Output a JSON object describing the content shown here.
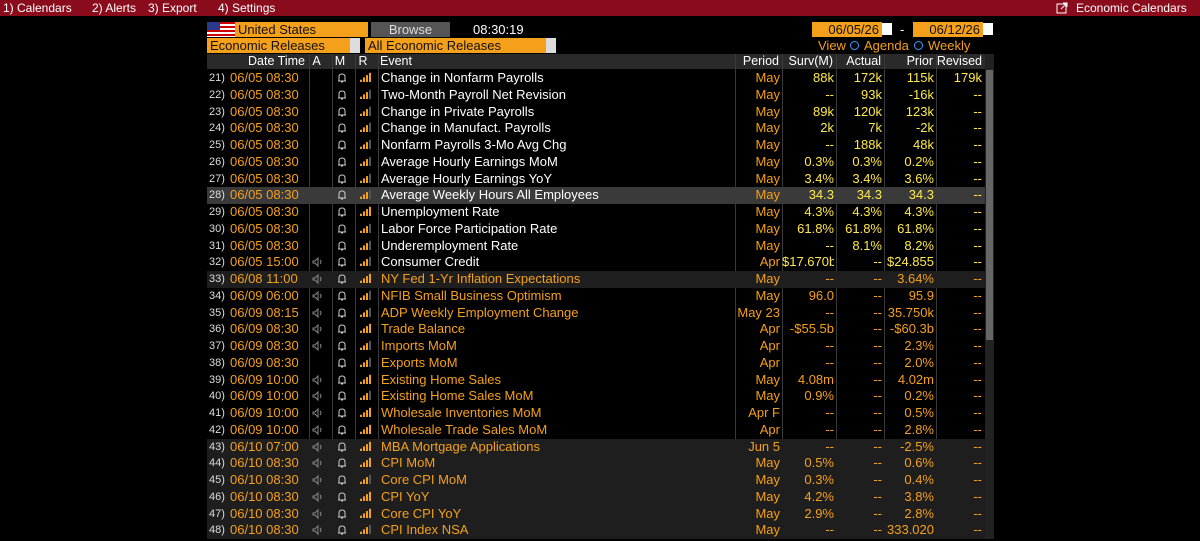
{
  "menu": {
    "items": [
      "1) Calendars",
      "2) Alerts",
      "3) Export",
      "4) Settings"
    ],
    "right": "Economic Calendars"
  },
  "toolbar": {
    "country": "United States",
    "browse": "Browse",
    "time": "08:30:19",
    "date_from": "06/05/26",
    "dash": "-",
    "date_to": "06/12/26"
  },
  "filters": {
    "category": "Economic Releases",
    "subcategory": "All Economic Releases",
    "view": "View",
    "agenda": "Agenda",
    "weekly": "Weekly"
  },
  "table": {
    "columns": [
      "Date Time",
      "A",
      "M",
      "R",
      "Event",
      "Period",
      "Surv(M)",
      "Actual",
      "Prior",
      "Revised"
    ],
    "rows": [
      {
        "num": "21)",
        "date": "06/05 08:30",
        "event": "Change in Nonfarm Payrolls",
        "period": "May",
        "surv": "88k",
        "actual": "172k",
        "prior": "115k",
        "revised": "179k"
      },
      {
        "num": "22)",
        "date": "06/05 08:30",
        "event": "Two-Month Payroll Net Revision",
        "period": "May",
        "surv": "--",
        "actual": "93k",
        "prior": "-16k",
        "revised": "--"
      },
      {
        "num": "23)",
        "date": "06/05 08:30",
        "event": "Change in Private Payrolls",
        "period": "May",
        "surv": "89k",
        "actual": "120k",
        "prior": "123k",
        "revised": "--"
      },
      {
        "num": "24)",
        "date": "06/05 08:30",
        "event": "Change in Manufact. Payrolls",
        "period": "May",
        "surv": "2k",
        "actual": "7k",
        "prior": "-2k",
        "revised": "--"
      },
      {
        "num": "25)",
        "date": "06/05 08:30",
        "event": "Nonfarm Payrolls 3-Mo Avg Chg",
        "period": "May",
        "surv": "--",
        "actual": "188k",
        "prior": "48k",
        "revised": "--"
      },
      {
        "num": "26)",
        "date": "06/05 08:30",
        "event": "Average Hourly Earnings MoM",
        "period": "May",
        "surv": "0.3%",
        "actual": "0.3%",
        "prior": "0.2%",
        "revised": "--"
      },
      {
        "num": "27)",
        "date": "06/05 08:30",
        "event": "Average Hourly Earnings YoY",
        "period": "May",
        "surv": "3.4%",
        "actual": "3.4%",
        "prior": "3.6%",
        "revised": "--"
      },
      {
        "num": "28)",
        "date": "06/05 08:30",
        "event": "Average Weekly Hours All Employees",
        "period": "May",
        "surv": "34.3",
        "actual": "34.3",
        "prior": "34.3",
        "revised": "--"
      },
      {
        "num": "29)",
        "date": "06/05 08:30",
        "event": "Unemployment Rate",
        "period": "May",
        "surv": "4.3%",
        "actual": "4.3%",
        "prior": "4.3%",
        "revised": "--"
      },
      {
        "num": "30)",
        "date": "06/05 08:30",
        "event": "Labor Force Participation Rate",
        "period": "May",
        "surv": "61.8%",
        "actual": "61.8%",
        "prior": "61.8%",
        "revised": "--"
      },
      {
        "num": "31)",
        "date": "06/05 08:30",
        "event": "Underemployment Rate",
        "period": "May",
        "surv": "--",
        "actual": "8.1%",
        "prior": "8.2%",
        "revised": "--"
      },
      {
        "num": "32)",
        "date": "06/05 15:00",
        "event": "Consumer Credit",
        "period": "Apr",
        "surv": "$17.670b",
        "actual": "--",
        "prior": "$24.855",
        "revised": "--"
      },
      {
        "num": "33)",
        "date": "06/08 11:00",
        "event": "NY Fed 1-Yr Inflation Expectations",
        "period": "May",
        "surv": "--",
        "actual": "--",
        "prior": "3.64%",
        "revised": "--"
      },
      {
        "num": "34)",
        "date": "06/09 06:00",
        "event": "NFIB Small Business Optimism",
        "period": "May",
        "surv": "96.0",
        "actual": "--",
        "prior": "95.9",
        "revised": "--"
      },
      {
        "num": "35)",
        "date": "06/09 08:15",
        "event": "ADP Weekly Employment Change",
        "period": "May 23",
        "surv": "--",
        "actual": "--",
        "prior": "35.750k",
        "revised": "--"
      },
      {
        "num": "36)",
        "date": "06/09 08:30",
        "event": "Trade Balance",
        "period": "Apr",
        "surv": "-$55.5b",
        "actual": "--",
        "prior": "-$60.3b",
        "revised": "--"
      },
      {
        "num": "37)",
        "date": "06/09 08:30",
        "event": "Imports MoM",
        "period": "Apr",
        "surv": "--",
        "actual": "--",
        "prior": "2.3%",
        "revised": "--"
      },
      {
        "num": "38)",
        "date": "06/09 08:30",
        "event": "Exports MoM",
        "period": "Apr",
        "surv": "--",
        "actual": "--",
        "prior": "2.0%",
        "revised": "--"
      },
      {
        "num": "39)",
        "date": "06/09 10:00",
        "event": "Existing Home Sales",
        "period": "May",
        "surv": "4.08m",
        "actual": "--",
        "prior": "4.02m",
        "revised": "--"
      },
      {
        "num": "40)",
        "date": "06/09 10:00",
        "event": "Existing Home Sales MoM",
        "period": "May",
        "surv": "0.9%",
        "actual": "--",
        "prior": "0.2%",
        "revised": "--"
      },
      {
        "num": "41)",
        "date": "06/09 10:00",
        "event": "Wholesale Inventories MoM",
        "period": "Apr F",
        "surv": "--",
        "actual": "--",
        "prior": "0.5%",
        "revised": "--"
      },
      {
        "num": "42)",
        "date": "06/09 10:00",
        "event": "Wholesale Trade Sales MoM",
        "period": "Apr",
        "surv": "--",
        "actual": "--",
        "prior": "2.8%",
        "revised": "--"
      },
      {
        "num": "43)",
        "date": "06/10 07:00",
        "event": "MBA Mortgage Applications",
        "period": "Jun 5",
        "surv": "--",
        "actual": "--",
        "prior": "-2.5%",
        "revised": "--"
      },
      {
        "num": "44)",
        "date": "06/10 08:30",
        "event": "CPI MoM",
        "period": "May",
        "surv": "0.5%",
        "actual": "--",
        "prior": "0.6%",
        "revised": "--"
      },
      {
        "num": "45)",
        "date": "06/10 08:30",
        "event": "Core CPI MoM",
        "period": "May",
        "surv": "0.3%",
        "actual": "--",
        "prior": "0.4%",
        "revised": "--"
      },
      {
        "num": "46)",
        "date": "06/10 08:30",
        "event": "CPI YoY",
        "period": "May",
        "surv": "4.2%",
        "actual": "--",
        "prior": "3.8%",
        "revised": "--"
      },
      {
        "num": "47)",
        "date": "06/10 08:30",
        "event": "Core CPI YoY",
        "period": "May",
        "surv": "2.9%",
        "actual": "--",
        "prior": "2.8%",
        "revised": "--"
      },
      {
        "num": "48)",
        "date": "06/10 08:30",
        "event": "CPI Index NSA",
        "period": "May",
        "surv": "--",
        "actual": "--",
        "prior": "333.020",
        "revised": "--"
      }
    ]
  }
}
